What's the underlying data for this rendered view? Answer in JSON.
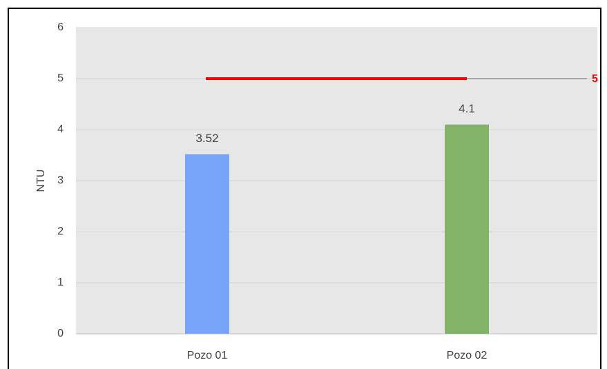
{
  "chart_data": {
    "type": "bar",
    "y_label": "NTU",
    "categories": [
      "Pozo 01",
      "Pozo 02"
    ],
    "values": [
      3.52,
      4.1
    ],
    "colors": [
      "#76a5f9",
      "#82b366"
    ],
    "ylim": [
      0,
      6
    ],
    "yticks": [
      0,
      1,
      2,
      3,
      4,
      5,
      6
    ],
    "grid": true,
    "reference_line": {
      "value": 5,
      "color": "#ff0000"
    }
  }
}
